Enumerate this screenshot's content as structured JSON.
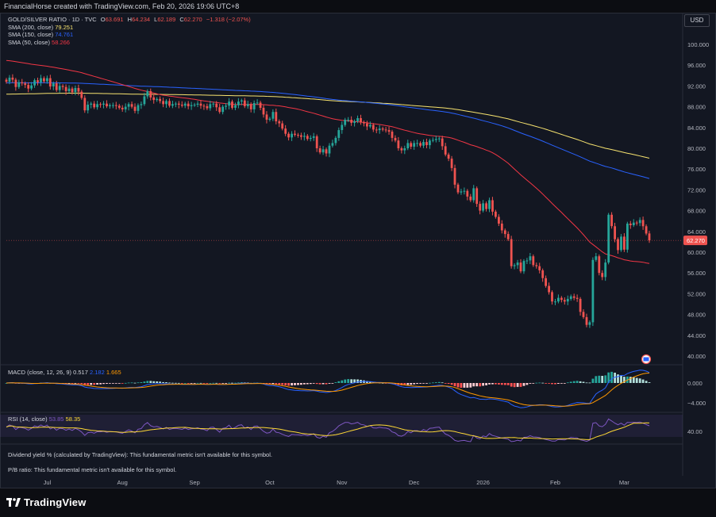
{
  "header": {
    "text": "FinancialHorse created with TradingView.com, Feb 20, 2026 19:06 UTC+8"
  },
  "currency_button": "USD",
  "legend": {
    "symbol": "GOLD/SILVER RATIO · 1D · TVC",
    "open_label": "O",
    "open": "63.691",
    "high_label": "H",
    "high": "64.234",
    "low_label": "L",
    "low": "62.189",
    "close_label": "C",
    "close": "62.270",
    "change": "−1.318 (−2.07%)",
    "sma200_label": "SMA (200, close)",
    "sma200_value": "79.251",
    "sma150_label": "SMA (150, close)",
    "sma150_value": "74.761",
    "sma50_label": "SMA (50, close)",
    "sma50_value": "58.266"
  },
  "macd": {
    "label": "MACD (close, 12, 26, 9)",
    "v1": "0.517",
    "v2": "2.182",
    "v3": "1.665"
  },
  "rsi": {
    "label": "RSI (14, close)",
    "v1": "53.85",
    "v2": "58.35"
  },
  "messages": {
    "dividend": "Dividend yield % (calculated by TradingView): This fundamental metric isn't available for this symbol.",
    "pe": "P/B ratio: This fundamental metric isn't available for this symbol."
  },
  "branding": {
    "logo_text": "TradingView"
  },
  "colors": {
    "background": "#131722",
    "up": "#26a69a",
    "down": "#ef5350",
    "sma200": "#f7e36f",
    "sma150": "#2962ff",
    "sma50": "#f23645",
    "macd_line": "#2962ff",
    "signal_line": "#ff9800",
    "rsi_line": "#7e57c2",
    "rsi_ma": "#fdd835"
  },
  "chart_data": [
    {
      "type": "candlestick",
      "title": "GOLD/SILVER RATIO · 1D · TVC",
      "x_tick_labels": [
        "Jul",
        "Aug",
        "Sep",
        "Oct",
        "Nov",
        "Dec",
        "2026",
        "Feb",
        "Mar"
      ],
      "y_tick_labels": [
        "100.000",
        "96.000",
        "92.000",
        "88.000",
        "84.000",
        "80.000",
        "76.000",
        "72.000",
        "68.000",
        "64.000",
        "60.000",
        "56.000",
        "52.000",
        "48.000",
        "44.000",
        "40.000"
      ],
      "ylim": [
        37.4,
        101.8
      ],
      "last_price": "62.270",
      "last_value": 62.27,
      "grid": false,
      "closes": [
        92.8,
        93.6,
        93.2,
        91.8,
        92.7,
        92.5,
        92.2,
        91.5,
        92.1,
        93.1,
        92.7,
        93.5,
        92.9,
        93.5,
        91.9,
        92.5,
        91.2,
        92.0,
        91.8,
        91.0,
        91.5,
        90.8,
        91.6,
        90.9,
        89.7,
        87.3,
        88.4,
        88.6,
        87.9,
        88.5,
        88.4,
        88.6,
        88.1,
        88.3,
        88.3,
        88.2,
        87.8,
        87.5,
        88.0,
        88.5,
        88.0,
        87.2,
        88.3,
        88.5,
        90.0,
        91.0,
        89.8,
        89.3,
        89.5,
        89.1,
        88.5,
        89.1,
        88.2,
        88.5,
        88.6,
        88.4,
        88.2,
        88.6,
        88.1,
        88.3,
        88.4,
        88.6,
        88.2,
        88.1,
        87.7,
        88.5,
        88.6,
        87.9,
        87.0,
        88.0,
        88.2,
        89.0,
        87.8,
        88.3,
        89.0,
        89.2,
        88.1,
        88.5,
        87.5,
        88.7,
        88.8,
        87.8,
        86.5,
        85.5,
        85.7,
        87.0,
        85.2,
        84.8,
        83.8,
        82.8,
        82.1,
        82.8,
        82.6,
        82.5,
        82.2,
        82.4,
        81.8,
        82.0,
        82.3,
        80.0,
        79.2,
        79.8,
        79.0,
        80.5,
        81.0,
        82.0,
        83.5,
        84.5,
        85.5,
        85.5,
        84.9,
        85.2,
        85.8,
        85.0,
        84.8,
        84.2,
        84.5,
        83.6,
        83.5,
        83.8,
        83.6,
        83.5,
        83.2,
        82.0,
        81.5,
        80.0,
        79.6,
        80.0,
        81.0,
        80.3,
        81.0,
        81.0,
        80.5,
        81.2,
        80.6,
        81.5,
        81.6,
        81.8,
        81.9,
        80.4,
        78.8,
        78.0,
        76.2,
        73.0,
        71.5,
        71.7,
        71.8,
        70.7,
        70.0,
        72.3,
        69.3,
        68.0,
        69.4,
        68.3,
        70.0,
        67.8,
        66.8,
        65.5,
        64.2,
        63.5,
        62.5,
        57.3,
        57.5,
        58.0,
        56.3,
        58.3,
        58.4,
        59.2,
        57.5,
        57.3,
        56.5,
        55.0,
        53.5,
        52.3,
        50.5,
        50.5,
        51.2,
        50.8,
        50.5,
        51.0,
        51.5,
        51.2,
        51.0,
        48.5,
        47.5,
        46.0,
        46.5,
        58.5,
        59.2,
        56.0,
        55.2,
        58.0,
        67.2,
        65.0,
        62.5,
        60.4,
        63.0,
        60.5,
        65.5,
        65.2,
        65.7,
        65.6,
        66.2,
        65.0,
        63.6,
        62.27
      ]
    },
    {
      "type": "line",
      "title": "MACD (close, 12, 26, 9)",
      "series": [
        {
          "name": "MACD",
          "last": 2.182
        },
        {
          "name": "Signal",
          "last": 1.665
        },
        {
          "name": "Histogram",
          "last": 0.517
        }
      ],
      "y_tick_labels": [
        "0.000",
        "−4.000"
      ]
    },
    {
      "type": "line",
      "title": "RSI (14, close)",
      "series": [
        {
          "name": "RSI",
          "last": 53.85
        },
        {
          "name": "RSI-based MA",
          "last": 58.35
        }
      ],
      "y_tick_labels": [
        "40.00"
      ]
    }
  ]
}
